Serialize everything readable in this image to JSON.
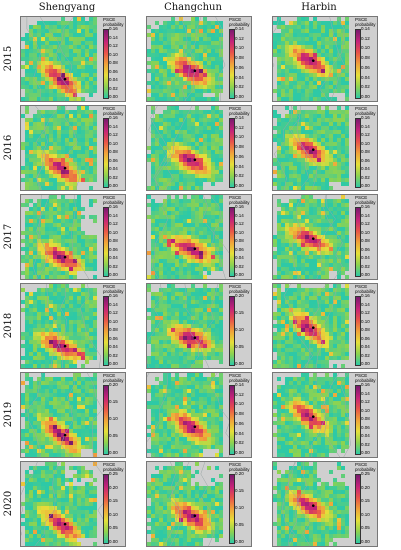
{
  "chart_data": {
    "type": "heatmap",
    "columns": [
      "Shengyang",
      "Changchun",
      "Harbin"
    ],
    "rows": [
      "2015",
      "2016",
      "2017",
      "2018",
      "2019",
      "2020"
    ],
    "legend_title": "PSCE probability",
    "colormap": [
      "#2ec9a6",
      "#8fd34f",
      "#e6df3a",
      "#f0a13a",
      "#e8524a",
      "#c4227a",
      "#7a1a6e"
    ],
    "panels": [
      {
        "city": "Shengyang",
        "year": "2015",
        "ticks": [
          "0.00",
          "0.02",
          "0.04",
          "0.06",
          "0.08",
          "0.10",
          "0.12",
          "0.14",
          "0.16"
        ]
      },
      {
        "city": "Changchun",
        "year": "2015",
        "ticks": [
          "0.00",
          "0.02",
          "0.04",
          "0.06",
          "0.08",
          "0.10",
          "0.12",
          "0.14"
        ]
      },
      {
        "city": "Harbin",
        "year": "2015",
        "ticks": [
          "0.00",
          "0.02",
          "0.04",
          "0.06",
          "0.08",
          "0.10",
          "0.12",
          "0.14"
        ]
      },
      {
        "city": "Shengyang",
        "year": "2016",
        "ticks": [
          "0.00",
          "0.02",
          "0.04",
          "0.06",
          "0.08",
          "0.10",
          "0.12",
          "0.14",
          "0.16"
        ]
      },
      {
        "city": "Changchun",
        "year": "2016",
        "ticks": [
          "0.00",
          "0.02",
          "0.04",
          "0.06",
          "0.08",
          "0.10",
          "0.12",
          "0.14"
        ]
      },
      {
        "city": "Harbin",
        "year": "2016",
        "ticks": [
          "0.00",
          "0.02",
          "0.04",
          "0.06",
          "0.08",
          "0.10",
          "0.12",
          "0.14",
          "0.16"
        ]
      },
      {
        "city": "Shengyang",
        "year": "2017",
        "ticks": [
          "0.00",
          "0.02",
          "0.04",
          "0.06",
          "0.08",
          "0.10",
          "0.12",
          "0.14",
          "0.16"
        ]
      },
      {
        "city": "Changchun",
        "year": "2017",
        "ticks": [
          "0.00",
          "0.02",
          "0.04",
          "0.06",
          "0.08",
          "0.10",
          "0.12",
          "0.14",
          "0.16"
        ]
      },
      {
        "city": "Harbin",
        "year": "2017",
        "ticks": [
          "0.00",
          "0.02",
          "0.04",
          "0.06",
          "0.08",
          "0.10",
          "0.12",
          "0.14",
          "0.16"
        ]
      },
      {
        "city": "Shengyang",
        "year": "2018",
        "ticks": [
          "0.00",
          "0.02",
          "0.04",
          "0.06",
          "0.08",
          "0.10",
          "0.12",
          "0.14",
          "0.16"
        ]
      },
      {
        "city": "Changchun",
        "year": "2018",
        "ticks": [
          "0.00",
          "0.05",
          "0.10",
          "0.15",
          "0.20"
        ]
      },
      {
        "city": "Harbin",
        "year": "2018",
        "ticks": [
          "0.00",
          "0.02",
          "0.04",
          "0.06",
          "0.08",
          "0.10",
          "0.12",
          "0.14",
          "0.16"
        ]
      },
      {
        "city": "Shengyang",
        "year": "2019",
        "ticks": [
          "0.00",
          "0.05",
          "0.10",
          "0.15",
          "0.20"
        ]
      },
      {
        "city": "Changchun",
        "year": "2019",
        "ticks": [
          "0.00",
          "0.02",
          "0.04",
          "0.06",
          "0.08",
          "0.10",
          "0.12",
          "0.14"
        ]
      },
      {
        "city": "Harbin",
        "year": "2019",
        "ticks": [
          "0.00",
          "0.02",
          "0.04",
          "0.06",
          "0.08",
          "0.10",
          "0.12",
          "0.14",
          "0.16"
        ]
      },
      {
        "city": "Shengyang",
        "year": "2020",
        "ticks": [
          "0.00",
          "0.05",
          "0.10",
          "0.15",
          "0.20",
          "0.25"
        ]
      },
      {
        "city": "Changchun",
        "year": "2020",
        "ticks": [
          "0.00",
          "0.05",
          "0.10",
          "0.15",
          "0.20"
        ]
      },
      {
        "city": "Harbin",
        "year": "2020",
        "ticks": [
          "0.00",
          "0.05",
          "0.10",
          "0.15",
          "0.20",
          "0.25"
        ]
      }
    ]
  }
}
